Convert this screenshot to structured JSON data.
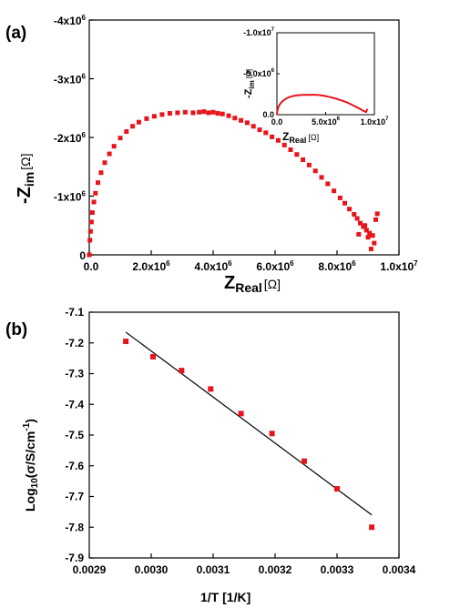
{
  "chart_data": [
    {
      "id": "a",
      "panel_label": "(a)",
      "type": "scatter",
      "xlabel": "Z",
      "xlabel_sub": "Real",
      "xlabel_unit": "[Ω]",
      "ylabel": "-Z",
      "ylabel_sub": "im",
      "ylabel_unit": "[Ω]",
      "xlim": [
        0,
        10000000
      ],
      "ylim": [
        0,
        4000000
      ],
      "y_inverted_sign": true,
      "x_ticks": [
        {
          "value": 0,
          "label": "0.0"
        },
        {
          "value": 2000000,
          "label": "2.0x10^6"
        },
        {
          "value": 4000000,
          "label": "4.0x10^6"
        },
        {
          "value": 6000000,
          "label": "6.0x10^6"
        },
        {
          "value": 8000000,
          "label": "8.0x10^6"
        },
        {
          "value": 10000000,
          "label": "1.0x10^7"
        }
      ],
      "y_ticks": [
        {
          "value": 0,
          "label": "0"
        },
        {
          "value": 1000000,
          "label": "-1x10^6"
        },
        {
          "value": 2000000,
          "label": "-2x10^6"
        },
        {
          "value": 3000000,
          "label": "-3x10^6"
        },
        {
          "value": 4000000,
          "label": "-4x10^6"
        }
      ],
      "marker_color": "#e8141b",
      "series": [
        {
          "x": [
            0,
            20000,
            40000,
            70000,
            100000,
            150000,
            200000,
            280000,
            380000,
            500000,
            650000,
            800000,
            1000000,
            1200000,
            1400000,
            1600000,
            1850000,
            2100000,
            2350000,
            2600000,
            2850000,
            3100000,
            3350000,
            3550000,
            3700000,
            3850000,
            4000000,
            4150000,
            4300000,
            4500000,
            4700000,
            4900000,
            5100000,
            5300000,
            5500000,
            5700000,
            5900000,
            6100000,
            6300000,
            6500000,
            6700000,
            6900000,
            7100000,
            7300000,
            7500000,
            7700000,
            7900000,
            8100000,
            8250000,
            8400000,
            8550000,
            8650000,
            8750000,
            8850000,
            8950000,
            9050000,
            9150000,
            9250000,
            9300000,
            8700000,
            8900000,
            9000000,
            9100000,
            9200000
          ],
          "y": [
            0,
            250000,
            400000,
            560000,
            720000,
            900000,
            1050000,
            1230000,
            1400000,
            1570000,
            1720000,
            1850000,
            1990000,
            2100000,
            2190000,
            2260000,
            2320000,
            2360000,
            2390000,
            2410000,
            2420000,
            2430000,
            2420000,
            2430000,
            2440000,
            2420000,
            2430000,
            2410000,
            2400000,
            2370000,
            2330000,
            2290000,
            2250000,
            2190000,
            2130000,
            2080000,
            2010000,
            1950000,
            1870000,
            1790000,
            1710000,
            1620000,
            1530000,
            1430000,
            1320000,
            1210000,
            1090000,
            970000,
            880000,
            780000,
            690000,
            620000,
            540000,
            480000,
            420000,
            370000,
            330000,
            600000,
            700000,
            350000,
            500000,
            300000,
            100000,
            200000
          ]
        }
      ],
      "inset": {
        "type": "scatter",
        "xlabel": "Z",
        "xlabel_sub": "Real",
        "xlabel_unit": "[Ω]",
        "ylabel": "-Z",
        "ylabel_sub": "im",
        "ylabel_unit": "[Ω]",
        "xlim": [
          0,
          10000000
        ],
        "ylim": [
          0,
          10000000
        ],
        "x_ticks": [
          {
            "value": 0,
            "label": "0.0"
          },
          {
            "value": 5000000,
            "label": "5.0x10^6"
          },
          {
            "value": 10000000,
            "label": "1.0x10^7"
          }
        ],
        "y_ticks": [
          {
            "value": 0,
            "label": "0.0"
          },
          {
            "value": 5000000,
            "label": "-5.0x10^6"
          },
          {
            "value": 10000000,
            "label": "-1.0x10^7"
          }
        ],
        "line_color": "#e8141b"
      }
    },
    {
      "id": "b",
      "panel_label": "(b)",
      "type": "scatter",
      "xlabel": "1/T [1/K]",
      "ylabel": "Log",
      "ylabel_sub": "10",
      "ylabel_rest": "(σ/S/cm",
      "ylabel_sup": "-1",
      "ylabel_end": ")",
      "xlim": [
        0.0029,
        0.0034
      ],
      "ylim": [
        -7.9,
        -7.1
      ],
      "x_ticks": [
        "0.0029",
        "0.0030",
        "0.0031",
        "0.0032",
        "0.0033",
        "0.0034"
      ],
      "y_ticks": [
        "-7.1",
        "-7.2",
        "-7.3",
        "-7.4",
        "-7.5",
        "-7.6",
        "-7.7",
        "-7.8",
        "-7.9"
      ],
      "marker_color": "#e8141b",
      "series": [
        {
          "x": [
            0.002959,
            0.003003,
            0.003049,
            0.003096,
            0.003145,
            0.003195,
            0.003247,
            0.0033,
            0.003356
          ],
          "y": [
            -7.195,
            -7.245,
            -7.29,
            -7.35,
            -7.43,
            -7.495,
            -7.585,
            -7.675,
            -7.8
          ]
        }
      ],
      "fit": {
        "x": [
          0.002959,
          0.003356
        ],
        "y": [
          -7.165,
          -7.76
        ]
      }
    }
  ]
}
